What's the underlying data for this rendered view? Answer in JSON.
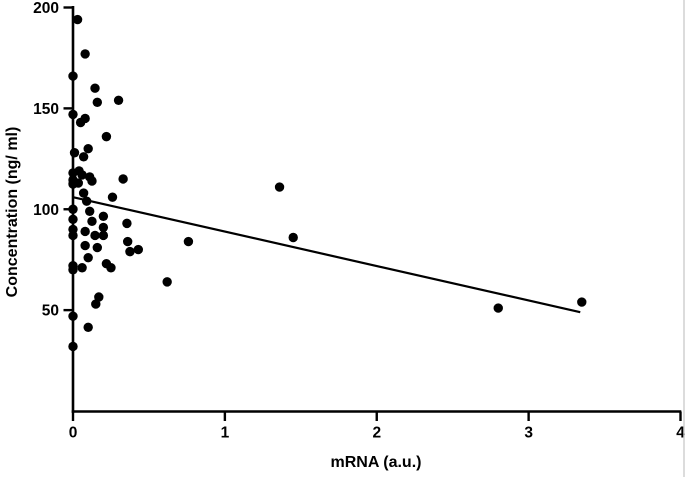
{
  "chart_data": {
    "type": "scatter",
    "title": "",
    "xlabel": "mRNA (a.u.)",
    "ylabel": "Concentration (ng/ ml)",
    "xlim": [
      0,
      4
    ],
    "ylim": [
      0,
      200
    ],
    "x_ticks": [
      0,
      1,
      2,
      3,
      4
    ],
    "y_ticks": [
      50,
      100,
      150,
      200
    ],
    "grid": false,
    "legend": "none",
    "marker_color": "#000000",
    "line_color": "#000000",
    "points": [
      [
        0.03,
        194
      ],
      [
        0.08,
        177
      ],
      [
        0.0,
        166
      ],
      [
        0.145,
        160
      ],
      [
        0.16,
        153
      ],
      [
        0.3,
        154
      ],
      [
        0.0,
        147
      ],
      [
        0.08,
        145
      ],
      [
        0.05,
        143
      ],
      [
        0.22,
        136
      ],
      [
        0.1,
        130
      ],
      [
        0.01,
        128
      ],
      [
        0.07,
        126
      ],
      [
        0.04,
        119
      ],
      [
        0.0,
        118
      ],
      [
        0.06,
        117
      ],
      [
        0.11,
        116
      ],
      [
        0.0,
        114.5
      ],
      [
        0.035,
        113
      ],
      [
        0.125,
        114
      ],
      [
        0.0,
        112.5
      ],
      [
        0.33,
        115
      ],
      [
        1.36,
        111
      ],
      [
        0.07,
        108
      ],
      [
        0.26,
        106
      ],
      [
        0.09,
        104
      ],
      [
        0.0,
        100
      ],
      [
        0.11,
        99
      ],
      [
        0.2,
        96.5
      ],
      [
        0.0,
        95
      ],
      [
        0.125,
        94
      ],
      [
        0.355,
        93
      ],
      [
        0.0,
        90
      ],
      [
        0.08,
        89
      ],
      [
        0.2,
        91
      ],
      [
        0.2,
        87
      ],
      [
        0.0,
        87
      ],
      [
        0.145,
        87
      ],
      [
        1.45,
        86
      ],
      [
        0.36,
        84
      ],
      [
        0.76,
        84
      ],
      [
        0.08,
        82
      ],
      [
        0.16,
        81
      ],
      [
        0.375,
        79
      ],
      [
        0.43,
        80
      ],
      [
        0.1,
        76
      ],
      [
        0.0,
        72
      ],
      [
        0.0,
        70
      ],
      [
        0.06,
        71
      ],
      [
        0.22,
        73
      ],
      [
        0.25,
        71
      ],
      [
        0.62,
        64
      ],
      [
        0.17,
        56.5
      ],
      [
        0.15,
        53
      ],
      [
        0.0,
        47
      ],
      [
        0.1,
        41.5
      ],
      [
        0.0,
        32
      ],
      [
        2.8,
        51
      ],
      [
        3.35,
        54
      ]
    ],
    "trendline": {
      "x1": 0,
      "y1": 106,
      "x2": 3.34,
      "y2": 49
    }
  }
}
